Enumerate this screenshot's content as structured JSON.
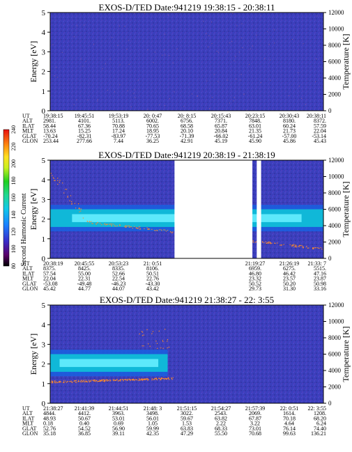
{
  "chart_data": [
    {
      "type": "heatmap",
      "title": "EXOS-D/TED   Date:941219   19:38:15 - 20:38:11",
      "ylabel_left": "Energy [eV]",
      "ylabel_right": "Temperature [K]",
      "ylim": [
        0,
        5
      ],
      "y_ticks": [
        0,
        1,
        2,
        3,
        4,
        5
      ],
      "y2lim": [
        0,
        12000
      ],
      "y2_ticks": [
        0,
        2000,
        4000,
        6000,
        8000,
        10000,
        12000
      ],
      "rows": [
        {
          "label": "UT",
          "values": [
            "19:38:15",
            "19:45:51",
            "19:53:19",
            "20: 0:47",
            "20: 8:15",
            "20:15:43",
            "20:23:15",
            "20:30:43",
            "20:38:11"
          ]
        },
        {
          "label": "ALT",
          "values": [
            "2981.",
            "4101.",
            "5113.",
            "6002.",
            "6756.",
            "7371.",
            "7848.",
            "8180.",
            "8372."
          ]
        },
        {
          "label": "ILAT",
          "values": [
            "58.44",
            "67.36",
            "70.88",
            "70.65",
            "68.58",
            "65.87",
            "63.01",
            "60.24",
            "57.59"
          ]
        },
        {
          "label": "MLT",
          "values": [
            "13.63",
            "15.25",
            "17.24",
            "18.95",
            "20.10",
            "20.84",
            "21.35",
            "21.73",
            "22.04"
          ]
        },
        {
          "label": "GLAT",
          "values": [
            "-70.24",
            "-82.31",
            "-83.97",
            "-77.53",
            "-71.39",
            "-66.02",
            "-61.24",
            "-57.00",
            "-53.14"
          ]
        },
        {
          "label": "GLON",
          "values": [
            "253.44",
            "277.66",
            "7.44",
            "36.25",
            "42.91",
            "45.19",
            "45.90",
            "45.86",
            "45.43"
          ]
        }
      ],
      "gaps": [],
      "band": null
    },
    {
      "type": "heatmap",
      "title": "EXOS-D/TED   Date:941219   20:38:19 - 21:38:19",
      "ylabel_left": "Energy [eV]",
      "ylabel_right": "Temperature [K]",
      "ylim": [
        0,
        5
      ],
      "y_ticks": [
        0,
        1,
        2,
        3,
        4,
        5
      ],
      "y2lim": [
        0,
        12000
      ],
      "y2_ticks": [
        0,
        2000,
        4000,
        6000,
        8000,
        10000,
        12000
      ],
      "rows": [
        {
          "label": "UT",
          "values": [
            "20:38:19",
            "20:45:55",
            "20:53:23",
            "21: 0:51",
            "",
            "",
            "21:19:27",
            "21:26:19",
            "21:33: 7"
          ]
        },
        {
          "label": "ALT",
          "values": [
            "8375.",
            "8425.",
            "8335.",
            "8106.",
            "",
            "",
            "6959.",
            "6275.",
            "5515."
          ]
        },
        {
          "label": "ILAT",
          "values": [
            "57.54",
            "55.00",
            "52.66",
            "50.51",
            "",
            "",
            "46.80",
            "46.42",
            "47.16"
          ]
        },
        {
          "label": "MLT",
          "values": [
            "22.04",
            "22.31",
            "22.54",
            "22.76",
            "",
            "",
            "23.32",
            "23.57",
            "23.87"
          ]
        },
        {
          "label": "GLAT",
          "values": [
            "-53.08",
            "-49.48",
            "-46.23",
            "-43.30",
            "",
            "",
            "50.52",
            "50.20",
            "50.98"
          ]
        },
        {
          "label": "GLON",
          "values": [
            "45.42",
            "44.77",
            "44.07",
            "43.42",
            "",
            "",
            "29.73",
            "31.30",
            "33.16"
          ]
        }
      ],
      "gaps": [
        [
          0.455,
          0.74
        ],
        [
          0.756,
          0.772
        ]
      ],
      "band": {
        "start": 0.0,
        "end": 1.0,
        "energy_center": 2.05,
        "energy_halfwidth": 0.45,
        "fade_end": 0.455
      }
    },
    {
      "type": "heatmap",
      "title": "EXOS-D/TED   Date:941219   21:38:27 - 22: 3:55",
      "ylabel_left": "Energy [eV]",
      "ylabel_right": "Temperature [K]",
      "ylim": [
        0,
        5
      ],
      "y_ticks": [
        0,
        1,
        2,
        3,
        4,
        5
      ],
      "y2lim": [
        0,
        12000
      ],
      "y2_ticks": [
        0,
        2000,
        4000,
        6000,
        8000,
        10000,
        12000
      ],
      "rows": [
        {
          "label": "UT",
          "values": [
            "21:38:27",
            "21:41:39",
            "21:44:51",
            "21:48: 3",
            "21:51:15",
            "21:54:27",
            "21:57:39",
            "22: 0:51",
            "22: 3:55"
          ]
        },
        {
          "label": "ALT",
          "values": [
            "4844.",
            "4412.",
            "3963.",
            "3498.",
            "3022.",
            "2543.",
            "2069.",
            "1614.",
            "1208."
          ]
        },
        {
          "label": "ILAT",
          "values": [
            "48.93",
            "50.67",
            "53.01",
            "56.01",
            "59.67",
            "63.82",
            "67.87",
            "70.18",
            "68.20"
          ]
        },
        {
          "label": "MLT",
          "values": [
            "0.18",
            "0.40",
            "0.69",
            "1.05",
            "1.53",
            "2.22",
            "3.22",
            "4.64",
            "6.24"
          ]
        },
        {
          "label": "GLAT",
          "values": [
            "52.76",
            "54.52",
            "56.90",
            "59.99",
            "63.83",
            "68.33",
            "73.01",
            "76.14",
            "74.40"
          ]
        },
        {
          "label": "GLON",
          "values": [
            "35.18",
            "36.85",
            "39.11",
            "42.35",
            "47.29",
            "55.50",
            "70.68",
            "99.63",
            "136.21"
          ]
        }
      ],
      "gaps": [],
      "band": {
        "start": 0.0,
        "end": 0.43,
        "energy_center": 2.05,
        "energy_halfwidth": 0.45,
        "fade_end": 0.43
      }
    }
  ],
  "colorbar": {
    "label": "Second Harmonic Current",
    "ticks": [
      80,
      100,
      120,
      140,
      160,
      180,
      200,
      220,
      240
    ],
    "range": [
      80,
      240
    ]
  },
  "colors": {
    "background_field": "#3a3fb8",
    "band_core": "#66eeff",
    "band_mid": "#10b8d8",
    "band_edge": "#1a60e0",
    "trace": "#ff8a2a"
  }
}
